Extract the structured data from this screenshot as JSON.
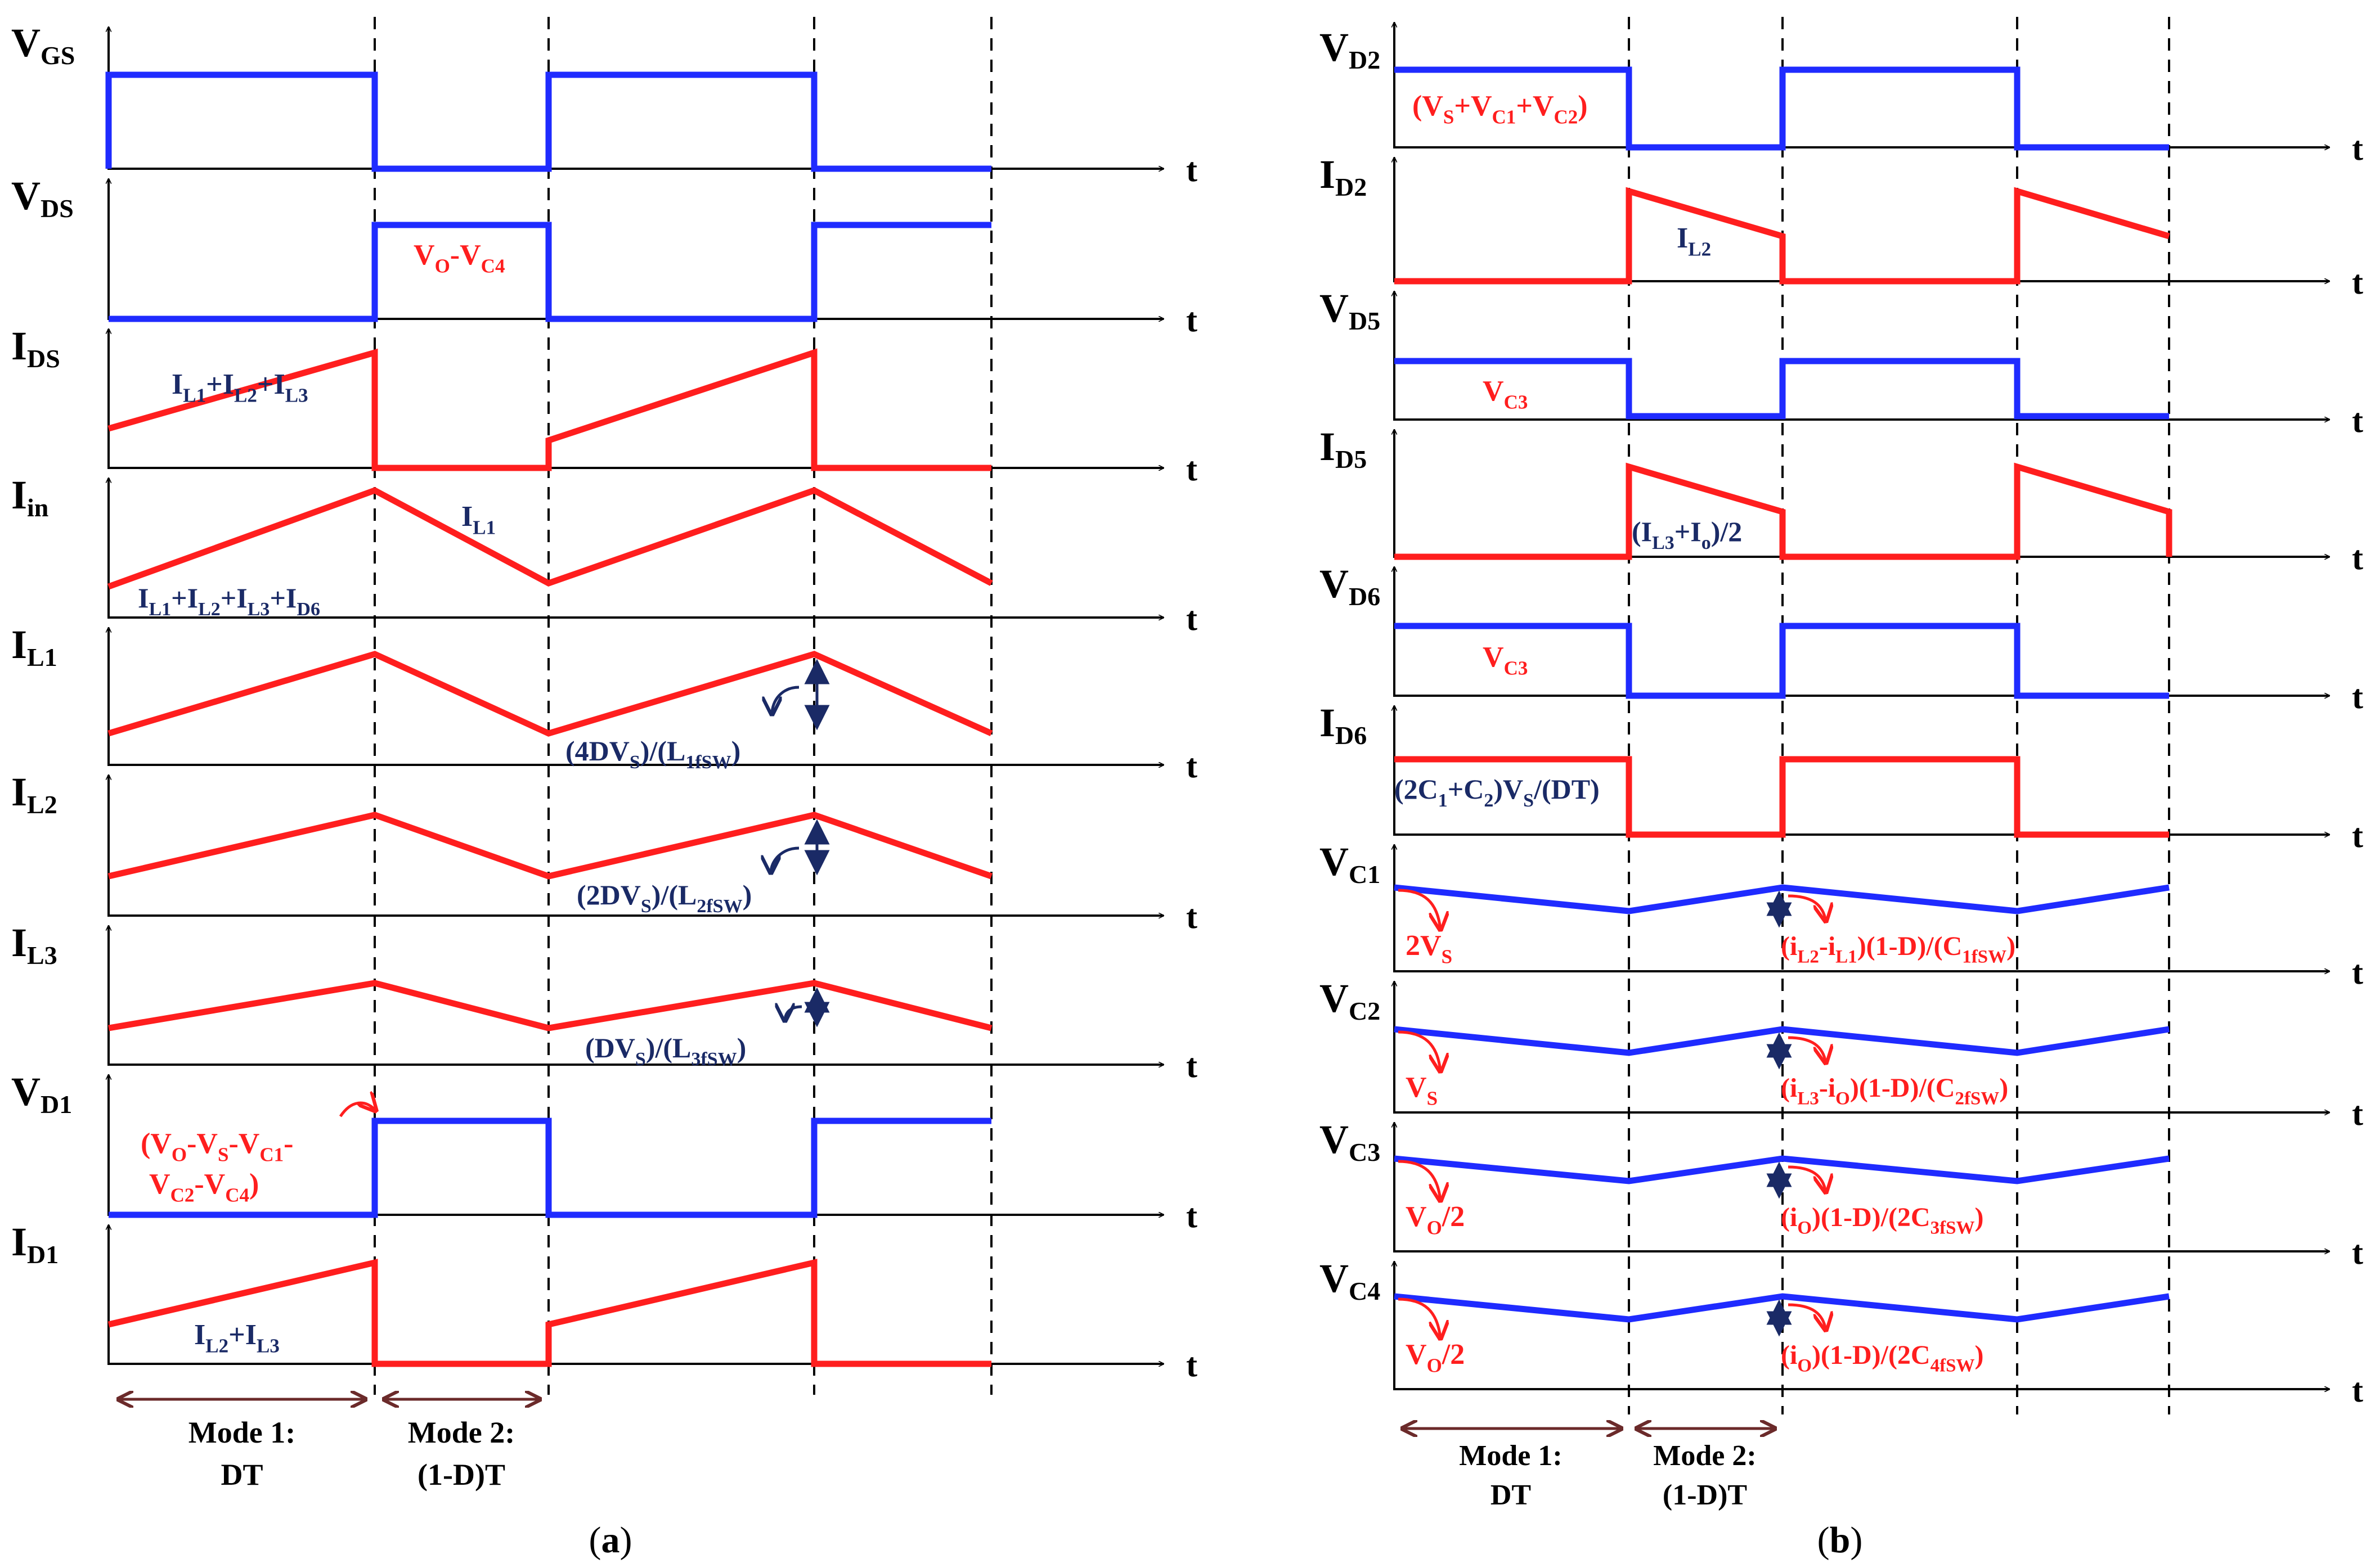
{
  "colors": {
    "blue": "#1f2bff",
    "red": "#ff1e1e",
    "navy": "#1a2a66",
    "brown": "#6b2a2a",
    "axis": "#000000"
  },
  "panels": {
    "a": {
      "caption": "a",
      "rows": [
        {
          "sym": "V",
          "sub": "GS",
          "axis": "t",
          "color": "blue"
        },
        {
          "sym": "V",
          "sub": "DS",
          "axis": "t",
          "color": "blue"
        },
        {
          "sym": "I",
          "sub": "DS",
          "axis": "t",
          "color": "red"
        },
        {
          "sym": "I",
          "sub": "in",
          "axis": "t",
          "color": "red"
        },
        {
          "sym": "I",
          "sub": "L1",
          "axis": "t",
          "color": "red"
        },
        {
          "sym": "I",
          "sub": "L2",
          "axis": "t",
          "color": "red"
        },
        {
          "sym": "I",
          "sub": "L3",
          "axis": "t",
          "color": "red"
        },
        {
          "sym": "V",
          "sub": "D1",
          "axis": "t",
          "color": "blue"
        },
        {
          "sym": "I",
          "sub": "D1",
          "axis": "t",
          "color": "red"
        }
      ],
      "annotations": [
        "V_O-V_C4",
        "I_L1+I_L2+I_L3",
        "I_L1",
        "I_L1+I_L2+I_L3+I_D6",
        "(4DV_S)/(L_1f_SW)",
        "(2DV_S)/(L_2f_SW)",
        "(DV_S)/(L_3f_SW)",
        "(V_O-V_S-V_C1-",
        "V_C2-V_C4)",
        "I_L2+I_L3"
      ],
      "modes": [
        {
          "line1": "Mode 1:",
          "line2": "DT"
        },
        {
          "line1": "Mode 2:",
          "line2": "(1-D)T"
        }
      ]
    },
    "b": {
      "caption": "b",
      "rows": [
        {
          "sym": "V",
          "sub": "D2",
          "axis": "t",
          "color": "blue"
        },
        {
          "sym": "I",
          "sub": "D2",
          "axis": "t",
          "color": "red"
        },
        {
          "sym": "V",
          "sub": "D5",
          "axis": "t",
          "color": "blue"
        },
        {
          "sym": "I",
          "sub": "D5",
          "axis": "t",
          "color": "red"
        },
        {
          "sym": "V",
          "sub": "D6",
          "axis": "t",
          "color": "blue"
        },
        {
          "sym": "I",
          "sub": "D6",
          "axis": "t",
          "color": "red"
        },
        {
          "sym": "V",
          "sub": "C1",
          "axis": "t",
          "color": "blue"
        },
        {
          "sym": "V",
          "sub": "C2",
          "axis": "t",
          "color": "blue"
        },
        {
          "sym": "V",
          "sub": "C3",
          "axis": "t",
          "color": "blue"
        },
        {
          "sym": "V",
          "sub": "C4",
          "axis": "t",
          "color": "blue"
        }
      ],
      "annotations": [
        "(V_S+V_C1+V_C2)",
        "I_L2",
        "V_C3",
        "(I_L3+I_o)/2",
        "V_C3",
        "(2C_1+C_2)V_S/(DT)",
        "2V_S",
        "(i_L2-i_L1)(1-D)/(C_1f_SW)",
        "V_S",
        "(i_L3-i_O)(1-D)/(C_2f_SW)",
        "V_O/2",
        "(i_O)(1-D)/(2C_3f_SW)",
        "V_O/2",
        "(i_O)(1-D)/(2C_4f_SW)"
      ],
      "modes": [
        {
          "line1": "Mode 1:",
          "line2": "DT"
        },
        {
          "line1": "Mode 2:",
          "line2": "(1-D)T"
        }
      ]
    }
  }
}
